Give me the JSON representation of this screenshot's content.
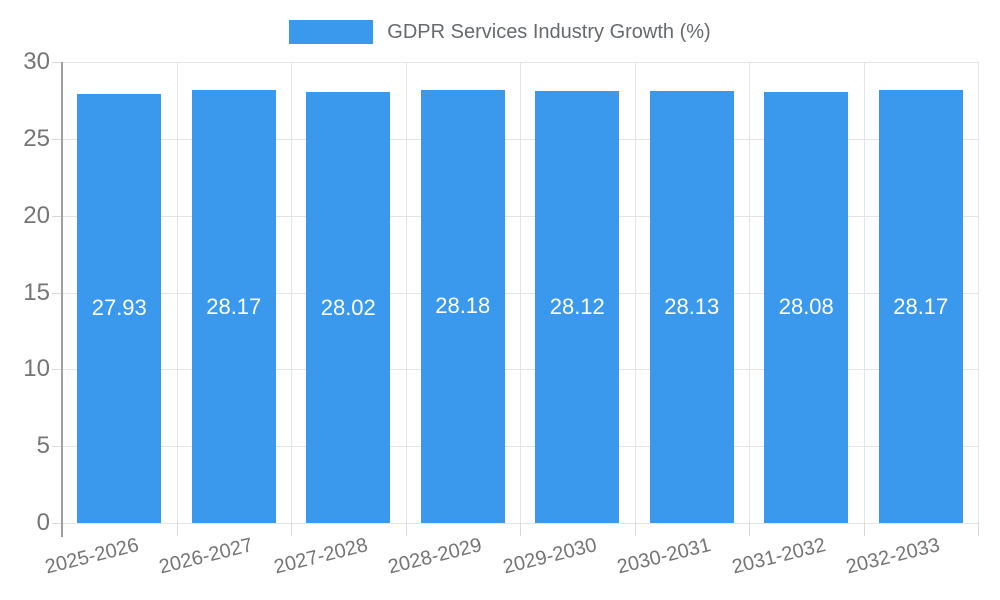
{
  "chart_data": {
    "type": "bar",
    "title": "GDPR Services Industry Growth (%)",
    "categories": [
      "2025-2026",
      "2026-2027",
      "2027-2028",
      "2028-2029",
      "2029-2030",
      "2030-2031",
      "2031-2032",
      "2032-2033"
    ],
    "values": [
      27.93,
      28.17,
      28.02,
      28.18,
      28.12,
      28.13,
      28.08,
      28.17
    ],
    "value_labels": [
      "27.93",
      "28.17",
      "28.02",
      "28.18",
      "28.12",
      "28.13",
      "28.08",
      "28.17"
    ],
    "xlabel": "",
    "ylabel": "",
    "ylim": [
      0,
      30
    ],
    "yticks": [
      0,
      5,
      10,
      15,
      20,
      25,
      30
    ],
    "ytick_labels": [
      "0",
      "5",
      "10",
      "15",
      "20",
      "25",
      "30"
    ],
    "grid": true,
    "legend_position": "top-center",
    "colors": {
      "bar": "#3a99ec",
      "grid": "#e4e4e4",
      "axis": "#9e9e9e",
      "tick_text": "#757575",
      "legend_text": "#666a6d",
      "value_text": "#ffffff",
      "background": "#ffffff"
    }
  }
}
